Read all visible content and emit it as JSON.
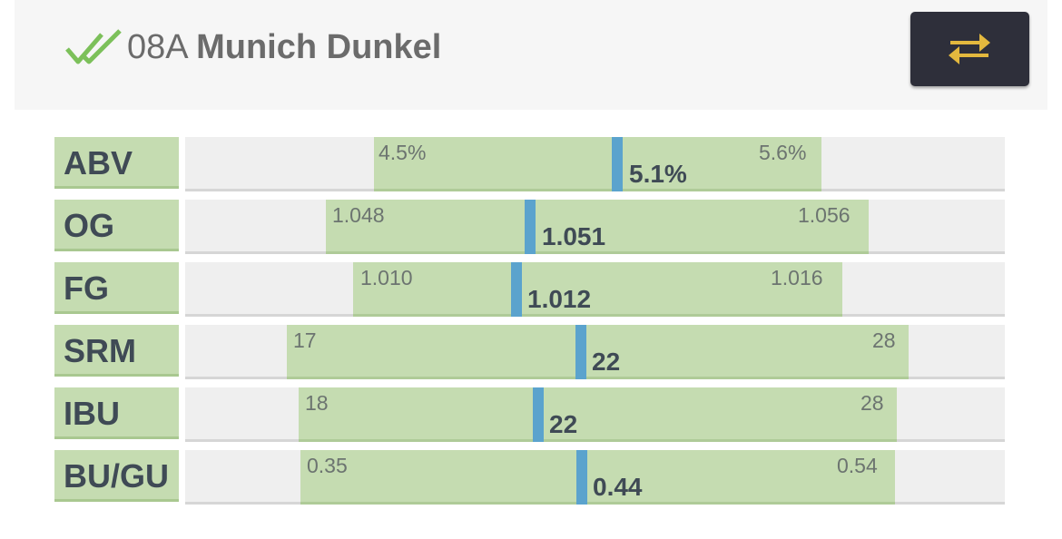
{
  "header": {
    "style_code": "08A",
    "style_name": "Munich Dunkel",
    "status_icon": "double-check-icon",
    "swap_icon": "swap-arrows-icon"
  },
  "colors": {
    "range": "#c5dcb1",
    "marker": "#5ba3cd",
    "button": "#2e2f3a",
    "icon_accent": "#e3b83e",
    "check": "#7cc05a"
  },
  "stats": [
    {
      "label": "ABV",
      "min": "4.5%",
      "max": "5.6%",
      "value": "5.1%"
    },
    {
      "label": "OG",
      "min": "1.048",
      "max": "1.056",
      "value": "1.051"
    },
    {
      "label": "FG",
      "min": "1.010",
      "max": "1.016",
      "value": "1.012"
    },
    {
      "label": "SRM",
      "min": "17",
      "max": "28",
      "value": "22"
    },
    {
      "label": "IBU",
      "min": "18",
      "max": "28",
      "value": "22"
    },
    {
      "label": "BU/GU",
      "min": "0.35",
      "max": "0.54",
      "value": "0.44"
    }
  ]
}
